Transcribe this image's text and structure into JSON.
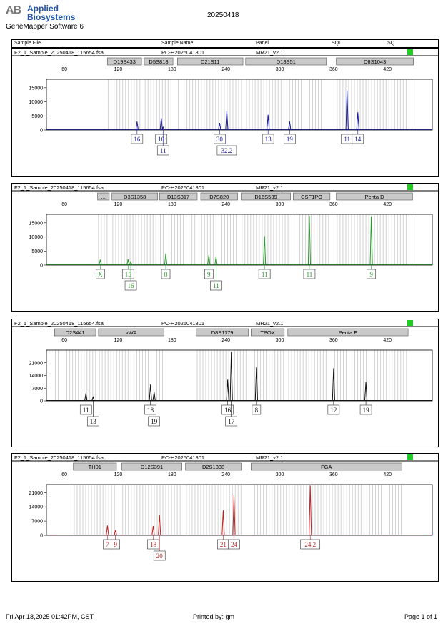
{
  "header": {
    "logo_mark": "AB",
    "logo_line1": "Applied",
    "logo_line2": "Biosystems",
    "software": "GeneMapper Software 6",
    "title": "20250418"
  },
  "columns": [
    "Sample File",
    "Sample Name",
    "Panel",
    "SQI",
    "SQ"
  ],
  "footer": {
    "date": "Fri Apr 18,2025 01:42PM, CST",
    "printed": "Printed by: gm",
    "page": "Page 1 of 1"
  },
  "chart_data": [
    {
      "type": "line",
      "sample_file": "F2_1_Sample_20250418_115654.fsa",
      "sample_name": "PC-H2025041801",
      "panel": "MR21_v2.1",
      "status_color": "#22cc22",
      "color": "#1a1aa0",
      "xlim": [
        40,
        470
      ],
      "x_ticks": [
        60,
        120,
        180,
        240,
        300,
        360,
        420
      ],
      "ylim": [
        0,
        18000
      ],
      "y_ticks": [
        0,
        5000,
        10000,
        15000
      ],
      "markers": [
        {
          "name": "D19S433",
          "range": [
            108,
            146
          ]
        },
        {
          "name": "D5S818",
          "range": [
            149,
            181
          ]
        },
        {
          "name": "D21S11",
          "range": [
            186,
            259
          ]
        },
        {
          "name": "D18S51",
          "range": [
            262,
            352
          ]
        },
        {
          "name": "D6S1043",
          "range": [
            363,
            449
          ]
        }
      ],
      "peaks": [
        {
          "x": 141,
          "h": 3000,
          "label": "16",
          "row": 1
        },
        {
          "x": 168,
          "h": 4200,
          "label": "10",
          "row": 1
        },
        {
          "x": 170,
          "h": 1000,
          "label": "11",
          "row": 2
        },
        {
          "x": 233,
          "h": 2500,
          "label": "30",
          "row": 1
        },
        {
          "x": 241,
          "h": 6700,
          "label": "32.2",
          "row": 2
        },
        {
          "x": 287,
          "h": 5400,
          "label": "13",
          "row": 1
        },
        {
          "x": 311,
          "h": 3100,
          "label": "19",
          "row": 1
        },
        {
          "x": 375,
          "h": 14000,
          "label": "11",
          "row": 1
        },
        {
          "x": 387,
          "h": 6300,
          "label": "14",
          "row": 1
        }
      ]
    },
    {
      "type": "line",
      "sample_file": "F2_1_Sample_20250418_115654.fsa",
      "sample_name": "PC-H2025041801",
      "panel": "MR21_v2.1",
      "status_color": "#22cc22",
      "color": "#2a9a2a",
      "xlim": [
        40,
        470
      ],
      "x_ticks": [
        60,
        120,
        180,
        240,
        300,
        360,
        420
      ],
      "ylim": [
        0,
        18000
      ],
      "y_ticks": [
        0,
        5000,
        10000,
        15000
      ],
      "markers": [
        {
          "name": "...",
          "range": [
            97,
            110
          ]
        },
        {
          "name": "D3S1358",
          "range": [
            113,
            164
          ]
        },
        {
          "name": "D13S317",
          "range": [
            166,
            208
          ]
        },
        {
          "name": "D7S820",
          "range": [
            212,
            253
          ]
        },
        {
          "name": "D16S539",
          "range": [
            257,
            312
          ]
        },
        {
          "name": "CSF1PO",
          "range": [
            315,
            356
          ]
        },
        {
          "name": "Penta D",
          "range": [
            363,
            448
          ]
        }
      ],
      "peaks": [
        {
          "x": 100,
          "h": 1900,
          "label": "X",
          "row": 1
        },
        {
          "x": 131,
          "h": 2000,
          "label": "15",
          "row": 1
        },
        {
          "x": 134,
          "h": 1200,
          "label": "16",
          "row": 2
        },
        {
          "x": 173,
          "h": 4100,
          "label": "8",
          "row": 1
        },
        {
          "x": 221,
          "h": 3500,
          "label": "9",
          "row": 1
        },
        {
          "x": 229,
          "h": 2900,
          "label": "11",
          "row": 2
        },
        {
          "x": 283,
          "h": 10300,
          "label": "11",
          "row": 1
        },
        {
          "x": 333,
          "h": 17500,
          "label": "11",
          "row": 1
        },
        {
          "x": 402,
          "h": 17300,
          "label": "9",
          "row": 1
        }
      ]
    },
    {
      "type": "line",
      "sample_file": "F2_1_Sample_20250418_115654.fsa",
      "sample_name": "PC-H2025041801",
      "panel": "MR21_v2.1",
      "status_color": "#22cc22",
      "color": "#111111",
      "xlim": [
        40,
        470
      ],
      "x_ticks": [
        60,
        120,
        180,
        240,
        300,
        360,
        420
      ],
      "ylim": [
        0,
        28000
      ],
      "y_ticks": [
        0,
        7000,
        14000,
        21000
      ],
      "markers": [
        {
          "name": "D2S441",
          "range": [
            49,
            95
          ]
        },
        {
          "name": "vWA",
          "range": [
            98,
            171
          ]
        },
        {
          "name": "D8S1179",
          "range": [
            207,
            265
          ]
        },
        {
          "name": "TPOX",
          "range": [
            268,
            305
          ]
        },
        {
          "name": "Penta E",
          "range": [
            309,
            443
          ]
        }
      ],
      "peaks": [
        {
          "x": 84,
          "h": 4100,
          "label": "11",
          "row": 1
        },
        {
          "x": 92,
          "h": 2100,
          "label": "13",
          "row": 2
        },
        {
          "x": 156,
          "h": 9000,
          "label": "18",
          "row": 1
        },
        {
          "x": 160,
          "h": 5000,
          "label": "19",
          "row": 2
        },
        {
          "x": 242,
          "h": 11700,
          "label": "16",
          "row": 1
        },
        {
          "x": 246,
          "h": 27000,
          "label": "17",
          "row": 2
        },
        {
          "x": 274,
          "h": 18500,
          "label": "8",
          "row": 1
        },
        {
          "x": 360,
          "h": 18000,
          "label": "12",
          "row": 1
        },
        {
          "x": 396,
          "h": 10400,
          "label": "19",
          "row": 1
        }
      ]
    },
    {
      "type": "line",
      "sample_file": "F2_1_Sample_20250418_115654.fsa",
      "sample_name": "PC-H2025041801",
      "panel": "MR21_v2.1",
      "status_color": "#22cc22",
      "color": "#c22222",
      "xlim": [
        40,
        470
      ],
      "x_ticks": [
        60,
        120,
        180,
        240,
        300,
        360,
        420
      ],
      "ylim": [
        0,
        25000
      ],
      "y_ticks": [
        0,
        7000,
        14000,
        21000
      ],
      "markers": [
        {
          "name": "TH01",
          "range": [
            70,
            118
          ]
        },
        {
          "name": "D12S391",
          "range": [
            124,
            191
          ]
        },
        {
          "name": "D2S1338",
          "range": [
            195,
            257
          ]
        },
        {
          "name": "FGA",
          "range": [
            268,
            436
          ]
        }
      ],
      "peaks": [
        {
          "x": 108,
          "h": 4800,
          "label": "7",
          "row": 1
        },
        {
          "x": 117,
          "h": 2600,
          "label": "9",
          "row": 1
        },
        {
          "x": 159,
          "h": 4600,
          "label": "18",
          "row": 1
        },
        {
          "x": 166,
          "h": 10200,
          "label": "20",
          "row": 2
        },
        {
          "x": 237,
          "h": 12300,
          "label": "21",
          "row": 1
        },
        {
          "x": 249,
          "h": 19800,
          "label": "24",
          "row": 1
        },
        {
          "x": 334,
          "h": 24500,
          "label": "24.2",
          "row": 1
        }
      ]
    }
  ]
}
